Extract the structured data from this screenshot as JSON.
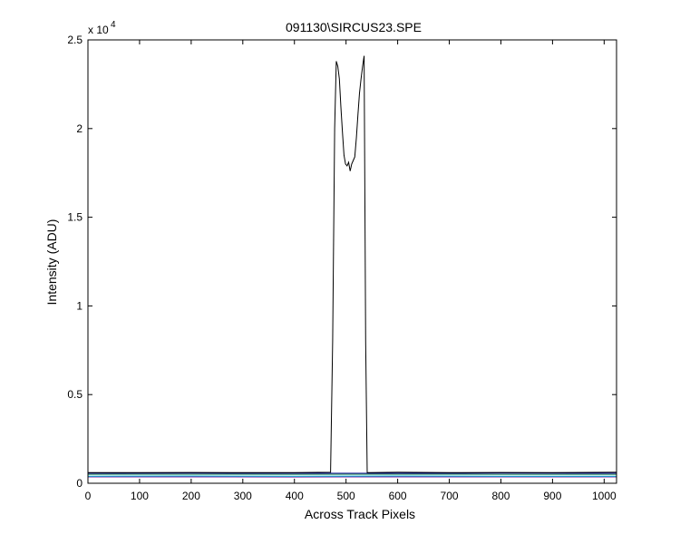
{
  "chart_data": {
    "type": "line",
    "title": "091130\\SIRCUS23.SPE",
    "xlabel": "Across Track Pixels",
    "ylabel": "Intensity (ADU)",
    "y_exponent_label": "x 10",
    "y_exponent": "4",
    "xlim": [
      0,
      1024
    ],
    "ylim": [
      0,
      25000
    ],
    "xticks": [
      0,
      100,
      200,
      300,
      400,
      500,
      600,
      700,
      800,
      900,
      1000
    ],
    "xtick_labels": [
      "0",
      "100",
      "200",
      "300",
      "400",
      "500",
      "600",
      "700",
      "800",
      "900",
      "1000"
    ],
    "yticks": [
      0,
      5000,
      10000,
      15000,
      20000,
      25000
    ],
    "ytick_labels": [
      "0",
      "0.5",
      "1",
      "1.5",
      "2",
      "2.5"
    ],
    "grid": false,
    "legend": "none",
    "series": [
      {
        "color": "#000000",
        "x": [
          0,
          100,
          200,
          300,
          400,
          470,
          474,
          478,
          481,
          484,
          487,
          490,
          493,
          496,
          499,
          502,
          505,
          508,
          511,
          514,
          517,
          520,
          523,
          526,
          529,
          532,
          535,
          538,
          541,
          545,
          600,
          700,
          800,
          900,
          1024
        ],
        "y": [
          600,
          600,
          610,
          600,
          600,
          620,
          8000,
          20000,
          23800,
          23500,
          22800,
          21200,
          19800,
          18500,
          18000,
          17900,
          18100,
          17600,
          18000,
          18200,
          18400,
          19500,
          20800,
          22000,
          22800,
          23500,
          24100,
          8000,
          600,
          600,
          620,
          600,
          610,
          600,
          620
        ]
      },
      {
        "color": "#00008b",
        "x": [
          0,
          200,
          400,
          600,
          800,
          1024
        ],
        "y": [
          560,
          570,
          560,
          560,
          570,
          560
        ]
      },
      {
        "color": "#00bcd4",
        "x": [
          0,
          200,
          400,
          600,
          800,
          1024
        ],
        "y": [
          400,
          410,
          400,
          410,
          400,
          400
        ]
      },
      {
        "color": "#2e8b57",
        "x": [
          0,
          200,
          400,
          600,
          800,
          1024
        ],
        "y": [
          500,
          505,
          500,
          505,
          500,
          500
        ]
      },
      {
        "color": "#7b1fa2",
        "x": [
          0,
          200,
          400,
          600,
          800,
          1024
        ],
        "y": [
          360,
          360,
          355,
          360,
          360,
          360
        ]
      }
    ]
  }
}
